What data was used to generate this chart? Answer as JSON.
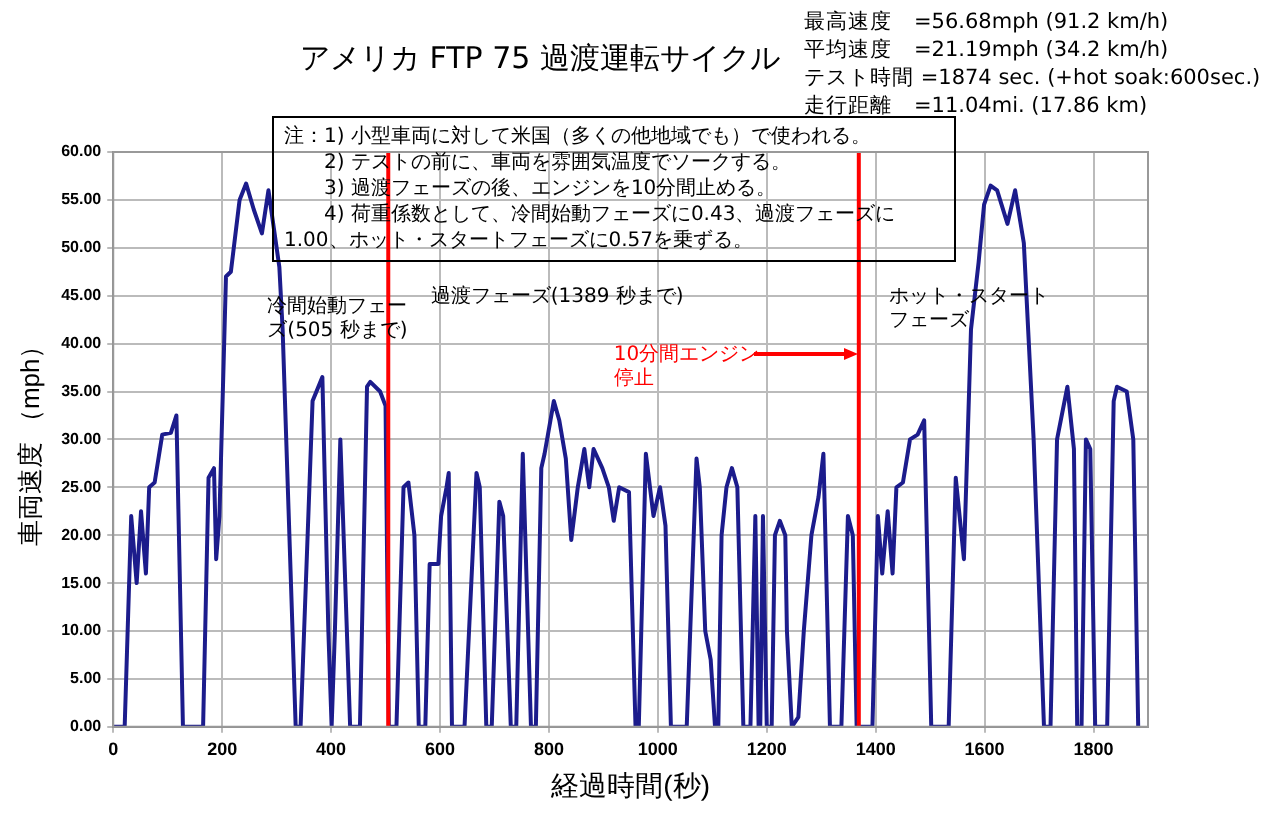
{
  "chart_data": {
    "type": "line",
    "title": "アメリカ  FTP 75 過渡運転サイクル",
    "xlabel": "経過時間(秒)",
    "ylabel": "車両速度 （mph）",
    "annotations": [
      "最高速度　=56.68mph (91.2 km/h)",
      "平均速度　=21.19mph (34.2 km/h)",
      "テスト時間 =1874 sec. (+hot soak:600sec.)",
      "走行距離　=11.04mi. (17.86 km)",
      "注：1) 小型車両に対して米国（多くの他地域でも）で使われる。\n　　2) テストの前に、車両を雰囲気温度でソークする。\n　　3) 過渡フェーズの後、エンジンを10分間止める。\n　　4) 荷重係数として、冷間始動フェーズに0.43、過渡フェーズに1.00、ホット・スタートフェーズに0.57を乗ずる。",
      "冷間始動フェーズ(505 秒まで)",
      "過渡フェーズ(1389 秒まで)",
      "ホット・スタートフェーズ",
      "10分間エンジン停止"
    ],
    "xlim": [
      0,
      1900
    ],
    "xticks": [
      0,
      200,
      400,
      600,
      800,
      1000,
      1200,
      1400,
      1600,
      1800
    ],
    "ylim": [
      0,
      60
    ],
    "yticks": [
      {
        "value": 0,
        "label": "0.00"
      },
      {
        "value": 5,
        "label": "5.00"
      },
      {
        "value": 10,
        "label": "10.00"
      },
      {
        "value": 15,
        "label": "15.00"
      },
      {
        "value": 20,
        "label": "20.00"
      },
      {
        "value": 25,
        "label": "25.00"
      },
      {
        "value": 30,
        "label": "30.00"
      },
      {
        "value": 35,
        "label": "35.00"
      },
      {
        "value": 40,
        "label": "40.00"
      },
      {
        "value": 45,
        "label": "45.00"
      },
      {
        "value": 50,
        "label": "50.00"
      },
      {
        "value": 55,
        "label": "55.00"
      },
      {
        "value": 60,
        "label": "60.00"
      }
    ],
    "grid": true,
    "legend": false,
    "ref_lines": [
      {
        "axis": "x",
        "value": 505,
        "color": "#ff0000"
      },
      {
        "axis": "x",
        "value": 1369,
        "color": "#ff0000"
      }
    ],
    "series": [
      {
        "color": "#1c1c8c",
        "x": [
          0,
          21,
          33,
          43,
          51,
          60,
          66,
          76,
          90,
          106,
          116,
          128,
          165,
          175,
          185,
          189,
          195,
          207,
          216,
          232,
          244,
          258,
          273,
          285,
          295,
          305,
          311,
          335,
          344,
          366,
          384,
          395,
          401,
          407,
          417,
          435,
          453,
          466,
          472,
          490,
          500,
          506,
          520,
          533,
          542,
          553,
          561,
          573,
          581,
          597,
          602,
          612,
          616,
          622,
          645,
          667,
          673,
          685,
          695,
          709,
          716,
          730,
          740,
          752,
          767,
          776,
          786,
          792,
          809,
          819,
          831,
          841,
          853,
          865,
          874,
          882,
          898,
          910,
          919,
          929,
          947,
          959,
          965,
          978,
          992,
          1004,
          1014,
          1024,
          1053,
          1071,
          1077,
          1087,
          1097,
          1105,
          1111,
          1117,
          1126,
          1136,
          1146,
          1157,
          1170,
          1179,
          1185,
          1188,
          1193,
          1200,
          1209,
          1215,
          1224,
          1234,
          1237,
          1246,
          1258,
          1268,
          1282,
          1295,
          1304,
          1316,
          1337,
          1349,
          1358,
          1365,
          1394,
          1404,
          1412,
          1422,
          1431,
          1438,
          1450,
          1463,
          1477,
          1489,
          1502,
          1534,
          1547,
          1562,
          1575,
          1589,
          1599,
          1611,
          1623,
          1642,
          1656,
          1672,
          1690,
          1709,
          1721,
          1733,
          1752,
          1764,
          1770,
          1778,
          1786,
          1794,
          1803,
          1825,
          1837,
          1843,
          1861,
          1873,
          1882
        ],
        "values": [
          0,
          0,
          22,
          15,
          22.5,
          16,
          25,
          25.5,
          30.5,
          30.7,
          32.5,
          0,
          0,
          26,
          27,
          17.5,
          22,
          47,
          47.5,
          55,
          56.7,
          54,
          51.5,
          56,
          52,
          48,
          41.5,
          0,
          0,
          34,
          36.5,
          10,
          0,
          10,
          30,
          0,
          0,
          35.5,
          36,
          35,
          33.5,
          0,
          0,
          25,
          25.5,
          20,
          0,
          0,
          17,
          17,
          22,
          25,
          26.5,
          0,
          0,
          26.5,
          25,
          0,
          0,
          23.5,
          22,
          0,
          0,
          28.5,
          0,
          0,
          27,
          28.5,
          34,
          32,
          28,
          19.5,
          25,
          29,
          25,
          29,
          27,
          25,
          21.5,
          25,
          24.5,
          0,
          0,
          28.5,
          22,
          25,
          21,
          0,
          0,
          28,
          25,
          10,
          7,
          0,
          0,
          20,
          25,
          27,
          25,
          0,
          0,
          22,
          0,
          0,
          22,
          0,
          0,
          20,
          21.5,
          20,
          10,
          0,
          1,
          10,
          20,
          24,
          28.5,
          0,
          0,
          22,
          20,
          0,
          0,
          22,
          16,
          22.5,
          16,
          25,
          25.5,
          30,
          30.5,
          32,
          0,
          0,
          26,
          17.5,
          41.5,
          48.5,
          54.5,
          56.5,
          56,
          52.5,
          56,
          50.5,
          30,
          0,
          0,
          30,
          35.5,
          29,
          0,
          0,
          30,
          29,
          0,
          0,
          34,
          35.5,
          35,
          30,
          0
        ]
      }
    ]
  }
}
